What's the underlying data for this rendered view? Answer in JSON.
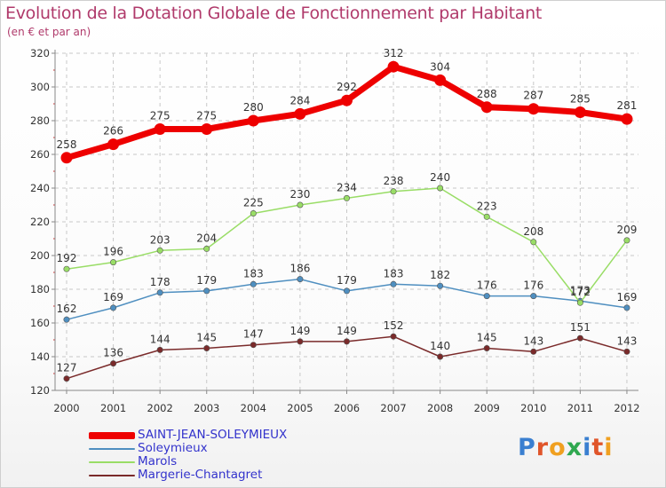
{
  "title": "Evolution de la Dotation Globale de Fonctionnement par Habitant",
  "subtitle": "(en € et par an)",
  "logo": "Proxiti",
  "colors": {
    "title": "#b03a6b",
    "legend_text": "#3333cc"
  },
  "chart_data": {
    "type": "line",
    "title": "Evolution de la Dotation Globale de Fonctionnement par Habitant",
    "ylabel": "(en € et par an)",
    "xlabel": "",
    "ylim": [
      120,
      320
    ],
    "yticks": [
      120,
      140,
      160,
      180,
      200,
      220,
      240,
      260,
      280,
      300,
      320
    ],
    "grid": true,
    "legend_position": "bottom-left",
    "categories": [
      "2000",
      "2001",
      "2002",
      "2003",
      "2004",
      "2005",
      "2006",
      "2007",
      "2008",
      "2009",
      "2010",
      "2011",
      "2012"
    ],
    "series": [
      {
        "name": "SAINT-JEAN-SOLEYMIEUX",
        "color": "#ee0000",
        "width": 7,
        "marker": 6.5,
        "values": [
          258,
          266,
          275,
          275,
          280,
          284,
          292,
          312,
          304,
          288,
          287,
          285,
          281
        ]
      },
      {
        "name": "Soleymieux",
        "color": "#4f8fc0",
        "width": 1.5,
        "marker": 3.2,
        "values": [
          162,
          169,
          178,
          179,
          183,
          186,
          179,
          183,
          182,
          176,
          176,
          173,
          169
        ]
      },
      {
        "name": "Marols",
        "color": "#99dd66",
        "width": 1.5,
        "marker": 3.2,
        "values": [
          192,
          196,
          203,
          204,
          225,
          230,
          234,
          238,
          240,
          223,
          208,
          172,
          209
        ]
      },
      {
        "name": "Margerie-Chantagret",
        "color": "#7a2a2a",
        "width": 1.5,
        "marker": 3.2,
        "values": [
          127,
          136,
          144,
          145,
          147,
          149,
          149,
          152,
          140,
          145,
          143,
          151,
          143
        ]
      }
    ]
  }
}
